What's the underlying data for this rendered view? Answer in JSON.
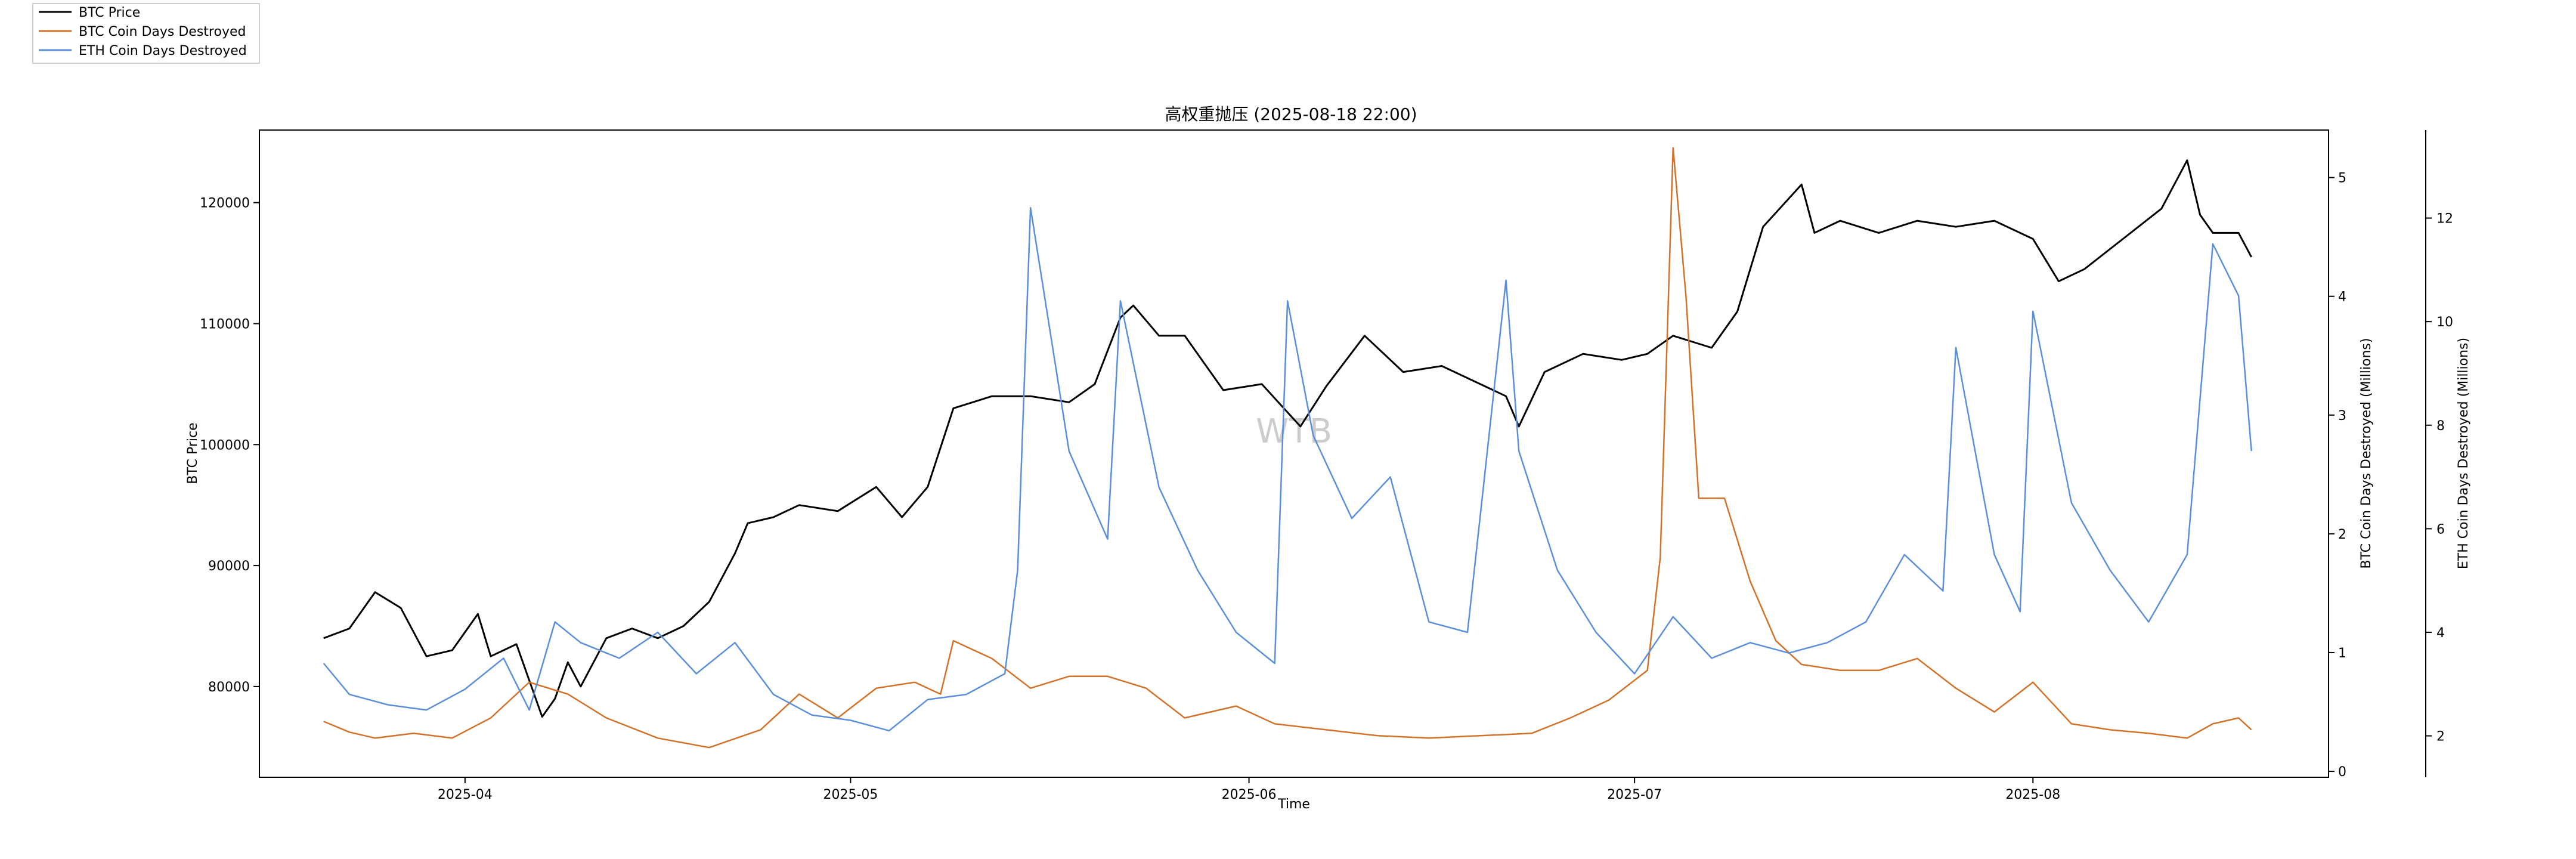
{
  "chart_data": {
    "type": "line",
    "title": "高权重抛压 (2025-08-18 22:00)",
    "watermark": "WTB",
    "xlabel": "Time",
    "x_ticks": [
      "2025-04",
      "2025-05",
      "2025-06",
      "2025-07",
      "2025-08"
    ],
    "xlim": [
      "2025-03-16",
      "2025-08-24"
    ],
    "legend": {
      "placement": "top-left",
      "entries": [
        "BTC Price",
        "BTC Coin Days Destroyed",
        "ETH Coin Days Destroyed"
      ]
    },
    "axes": {
      "left": {
        "label": "BTC Price",
        "ylim": [
          72500,
          126000
        ],
        "ticks": [
          80000,
          90000,
          100000,
          110000,
          120000
        ],
        "tick_labels": [
          "80000",
          "90000",
          "100000",
          "110000",
          "120000"
        ]
      },
      "right1": {
        "label": "BTC Coin Days Destroyed (Millions)",
        "ylim": [
          -0.05,
          5.4
        ],
        "ticks": [
          0,
          1,
          2,
          3,
          4,
          5
        ],
        "tick_labels": [
          "0",
          "1",
          "2",
          "3",
          "4",
          "5"
        ]
      },
      "right2": {
        "label": "ETH Coin Days Destroyed (Millions)",
        "ylim": [
          1.2,
          13.7
        ],
        "ticks": [
          2,
          4,
          6,
          8,
          10,
          12
        ],
        "tick_labels": [
          "2",
          "4",
          "6",
          "8",
          "10",
          "12"
        ]
      }
    },
    "series": [
      {
        "name": "BTC Price",
        "color": "#000000",
        "axis": "left",
        "x": [
          "2025-03-21",
          "2025-03-23",
          "2025-03-25",
          "2025-03-27",
          "2025-03-29",
          "2025-03-31",
          "2025-04-02",
          "2025-04-03",
          "2025-04-05",
          "2025-04-07",
          "2025-04-08",
          "2025-04-09",
          "2025-04-10",
          "2025-04-12",
          "2025-04-14",
          "2025-04-16",
          "2025-04-18",
          "2025-04-20",
          "2025-04-22",
          "2025-04-23",
          "2025-04-25",
          "2025-04-27",
          "2025-04-30",
          "2025-05-03",
          "2025-05-05",
          "2025-05-07",
          "2025-05-09",
          "2025-05-12",
          "2025-05-15",
          "2025-05-18",
          "2025-05-20",
          "2025-05-22",
          "2025-05-23",
          "2025-05-25",
          "2025-05-27",
          "2025-05-30",
          "2025-06-02",
          "2025-06-05",
          "2025-06-07",
          "2025-06-10",
          "2025-06-13",
          "2025-06-16",
          "2025-06-19",
          "2025-06-21",
          "2025-06-22",
          "2025-06-24",
          "2025-06-27",
          "2025-06-30",
          "2025-07-02",
          "2025-07-04",
          "2025-07-07",
          "2025-07-09",
          "2025-07-11",
          "2025-07-14",
          "2025-07-15",
          "2025-07-17",
          "2025-07-20",
          "2025-07-23",
          "2025-07-26",
          "2025-07-29",
          "2025-08-01",
          "2025-08-03",
          "2025-08-05",
          "2025-08-08",
          "2025-08-11",
          "2025-08-13",
          "2025-08-14",
          "2025-08-15",
          "2025-08-17",
          "2025-08-18"
        ],
        "values": [
          84000,
          84800,
          87800,
          86500,
          82500,
          83000,
          86000,
          82500,
          83500,
          77500,
          79000,
          82000,
          80000,
          84000,
          84800,
          84000,
          85000,
          87000,
          91000,
          93500,
          94000,
          95000,
          94500,
          96500,
          94000,
          96500,
          103000,
          104000,
          104000,
          103500,
          105000,
          110500,
          111500,
          109000,
          109000,
          104500,
          105000,
          101500,
          104800,
          109000,
          106000,
          106500,
          105000,
          104000,
          101500,
          106000,
          107500,
          107000,
          107500,
          109000,
          108000,
          111000,
          118000,
          121500,
          117500,
          118500,
          117500,
          118500,
          118000,
          118500,
          117000,
          113500,
          114500,
          117000,
          119500,
          123500,
          119000,
          117500,
          117500,
          115500
        ]
      },
      {
        "name": "BTC Coin Days Destroyed",
        "color": "#d2722a",
        "axis": "right1",
        "x": [
          "2025-03-21",
          "2025-03-23",
          "2025-03-25",
          "2025-03-28",
          "2025-03-31",
          "2025-04-03",
          "2025-04-06",
          "2025-04-09",
          "2025-04-12",
          "2025-04-16",
          "2025-04-20",
          "2025-04-24",
          "2025-04-27",
          "2025-04-30",
          "2025-05-03",
          "2025-05-06",
          "2025-05-08",
          "2025-05-09",
          "2025-05-12",
          "2025-05-15",
          "2025-05-18",
          "2025-05-21",
          "2025-05-24",
          "2025-05-27",
          "2025-05-31",
          "2025-06-03",
          "2025-06-07",
          "2025-06-11",
          "2025-06-15",
          "2025-06-19",
          "2025-06-23",
          "2025-06-26",
          "2025-06-29",
          "2025-07-02",
          "2025-07-03",
          "2025-07-04",
          "2025-07-05",
          "2025-07-06",
          "2025-07-08",
          "2025-07-10",
          "2025-07-12",
          "2025-07-14",
          "2025-07-17",
          "2025-07-20",
          "2025-07-23",
          "2025-07-26",
          "2025-07-29",
          "2025-08-01",
          "2025-08-04",
          "2025-08-07",
          "2025-08-10",
          "2025-08-13",
          "2025-08-15",
          "2025-08-17",
          "2025-08-18"
        ],
        "values": [
          0.42,
          0.33,
          0.28,
          0.32,
          0.28,
          0.45,
          0.75,
          0.65,
          0.45,
          0.28,
          0.2,
          0.35,
          0.65,
          0.45,
          0.7,
          0.75,
          0.65,
          1.1,
          0.95,
          0.7,
          0.8,
          0.8,
          0.7,
          0.45,
          0.55,
          0.4,
          0.35,
          0.3,
          0.28,
          0.3,
          0.32,
          0.45,
          0.6,
          0.85,
          1.8,
          5.25,
          4.0,
          2.3,
          2.3,
          1.6,
          1.1,
          0.9,
          0.85,
          0.85,
          0.95,
          0.7,
          0.5,
          0.75,
          0.4,
          0.35,
          0.32,
          0.28,
          0.4,
          0.45,
          0.35
        ]
      },
      {
        "name": "ETH Coin Days Destroyed",
        "color": "#5b8fdb",
        "axis": "right2",
        "x": [
          "2025-03-21",
          "2025-03-23",
          "2025-03-26",
          "2025-03-29",
          "2025-04-01",
          "2025-04-04",
          "2025-04-06",
          "2025-04-08",
          "2025-04-10",
          "2025-04-13",
          "2025-04-16",
          "2025-04-19",
          "2025-04-22",
          "2025-04-25",
          "2025-04-28",
          "2025-05-01",
          "2025-05-04",
          "2025-05-07",
          "2025-05-10",
          "2025-05-13",
          "2025-05-14",
          "2025-05-15",
          "2025-05-18",
          "2025-05-21",
          "2025-05-22",
          "2025-05-25",
          "2025-05-28",
          "2025-05-31",
          "2025-06-03",
          "2025-06-04",
          "2025-06-06",
          "2025-06-09",
          "2025-06-12",
          "2025-06-15",
          "2025-06-18",
          "2025-06-21",
          "2025-06-22",
          "2025-06-25",
          "2025-06-28",
          "2025-07-01",
          "2025-07-04",
          "2025-07-07",
          "2025-07-10",
          "2025-07-13",
          "2025-07-16",
          "2025-07-19",
          "2025-07-22",
          "2025-07-25",
          "2025-07-26",
          "2025-07-29",
          "2025-07-31",
          "2025-08-01",
          "2025-08-04",
          "2025-08-07",
          "2025-08-10",
          "2025-08-13",
          "2025-08-15",
          "2025-08-17",
          "2025-08-18"
        ],
        "values": [
          3.4,
          2.8,
          2.6,
          2.5,
          2.9,
          3.5,
          2.5,
          4.2,
          3.8,
          3.5,
          4.0,
          3.2,
          3.8,
          2.8,
          2.4,
          2.3,
          2.1,
          2.7,
          2.8,
          3.2,
          5.2,
          12.2,
          7.5,
          5.8,
          10.4,
          6.8,
          5.2,
          4.0,
          3.4,
          10.4,
          7.8,
          6.2,
          7.0,
          4.2,
          4.0,
          10.8,
          7.5,
          5.2,
          4.0,
          3.2,
          4.3,
          3.5,
          3.8,
          3.6,
          3.8,
          4.2,
          5.5,
          4.8,
          9.5,
          5.5,
          4.4,
          10.2,
          6.5,
          5.2,
          4.2,
          5.5,
          11.5,
          10.5,
          7.5
        ]
      }
    ]
  }
}
